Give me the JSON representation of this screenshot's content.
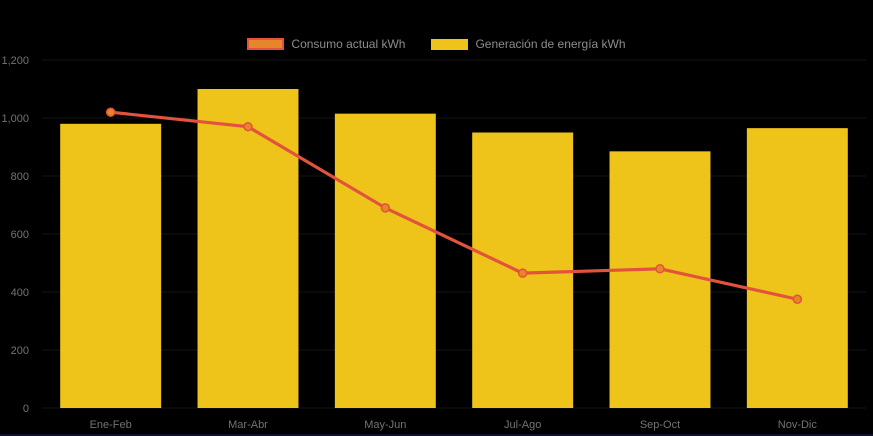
{
  "colors": {
    "background": "#000000",
    "bar": "#efc41a",
    "line": "#e2523c",
    "marker": "#e6862b",
    "axis_text": "#737373",
    "legend_text": "#8c8c8c",
    "gridline": "#141414",
    "bottom_edge": "#10102e"
  },
  "chart_data": {
    "type": "combo",
    "title": "",
    "categories": [
      "Ene-Feb",
      "Mar-Abr",
      "May-Jun",
      "Jul-Ago",
      "Sep-Oct",
      "Nov-Dic"
    ],
    "series": [
      {
        "name": "Consumo actual kWh",
        "type": "line",
        "values": [
          1020,
          970,
          690,
          465,
          480,
          375
        ],
        "color": "#e2523c",
        "marker_color": "#e6862b"
      },
      {
        "name": "Generación de energía kWh",
        "type": "bar",
        "values": [
          980,
          1100,
          1015,
          950,
          885,
          965
        ],
        "color": "#efc41a"
      }
    ],
    "xlabel": "",
    "ylabel": "",
    "ylim": [
      0,
      1200
    ],
    "ytick_interval": 200,
    "ytick_labels": [
      "0",
      "200",
      "400",
      "600",
      "800",
      "1,000",
      "1,200"
    ],
    "legend_position": "top-center",
    "grid": "subtle-horizontal"
  }
}
